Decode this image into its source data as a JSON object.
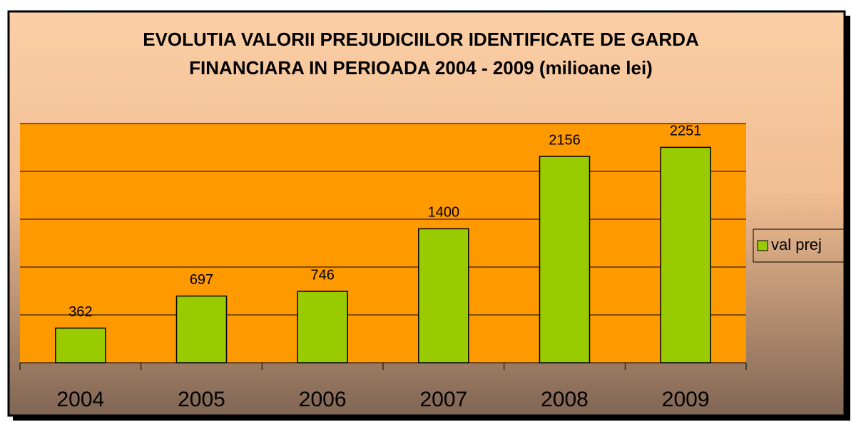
{
  "chart_data": {
    "type": "bar",
    "title": [
      "EVOLUTIA VALORII PREJUDICIILOR IDENTIFICATE DE GARDA",
      "FINANCIARA IN PERIOADA 2004 - 2009  (milioane lei)"
    ],
    "categories": [
      "2004",
      "2005",
      "2006",
      "2007",
      "2008",
      "2009"
    ],
    "series": [
      {
        "name": "val prej",
        "color": "#99cc00",
        "values": [
          362,
          697,
          746,
          1400,
          2156,
          2251
        ]
      }
    ],
    "ylim": [
      0,
      2500
    ],
    "yticks": [
      0,
      500,
      1000,
      1500,
      2000,
      2500
    ],
    "grid": true,
    "legend": "right"
  }
}
